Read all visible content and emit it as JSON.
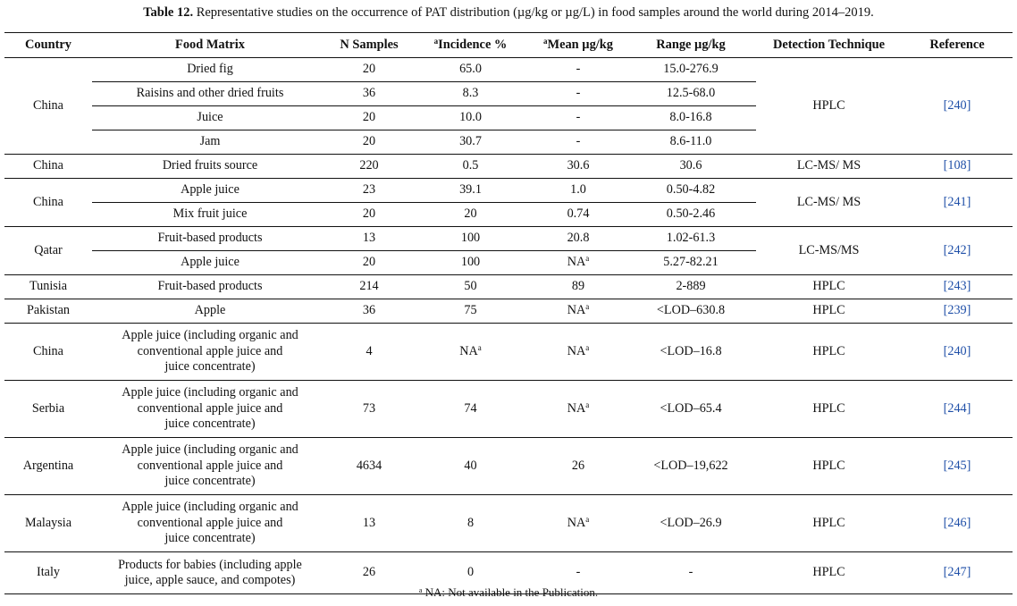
{
  "caption": {
    "label": "Table 12.",
    "text": "Representative studies on the occurrence of PAT distribution (µg/kg or µg/L) in food samples around the world during 2014–2019."
  },
  "table": {
    "headers": {
      "country": "Country",
      "food_matrix": "Food Matrix",
      "n_samples": "N Samples",
      "incidence_mark": "a",
      "incidence": "Incidence %",
      "mean_mark": "a",
      "mean": "Mean µg/kg",
      "range": "Range µg/kg",
      "technique": "Detection Technique",
      "reference": "Reference"
    },
    "groups": [
      {
        "country": "China",
        "technique": "HPLC",
        "reference": "[240]",
        "rows": [
          {
            "matrix": "Dried fig",
            "n": "20",
            "incidence": "65.0",
            "mean": "-",
            "range": "15.0-276.9"
          },
          {
            "matrix": "Raisins and other dried fruits",
            "n": "36",
            "incidence": "8.3",
            "mean": "-",
            "range": "12.5-68.0"
          },
          {
            "matrix": "Juice",
            "n": "20",
            "incidence": "10.0",
            "mean": "-",
            "range": "8.0-16.8"
          },
          {
            "matrix": "Jam",
            "n": "20",
            "incidence": "30.7",
            "mean": "-",
            "range": "8.6-11.0"
          }
        ]
      },
      {
        "country": "China",
        "technique": "LC-MS/ MS",
        "reference": "[108]",
        "rows": [
          {
            "matrix": "Dried fruits source",
            "n": "220",
            "incidence": "0.5",
            "mean": "30.6",
            "range": "30.6"
          }
        ]
      },
      {
        "country": "China",
        "technique": "LC-MS/ MS",
        "reference": "[241]",
        "rows": [
          {
            "matrix": "Apple juice",
            "n": "23",
            "incidence": "39.1",
            "mean": "1.0",
            "range": "0.50-4.82"
          },
          {
            "matrix": "Mix fruit juice",
            "n": "20",
            "incidence": "20",
            "mean": "0.74",
            "range": "0.50-2.46"
          }
        ]
      },
      {
        "country": "Qatar",
        "technique": "LC-MS/MS",
        "reference": "[242]",
        "rows": [
          {
            "matrix": "Fruit-based products",
            "n": "13",
            "incidence": "100",
            "mean": "20.8",
            "range": "1.02-61.3"
          },
          {
            "matrix": "Apple juice",
            "n": "20",
            "incidence": "100",
            "mean": "NA",
            "mean_sup": "a",
            "range": "5.27-82.21"
          }
        ]
      },
      {
        "country": "Tunisia",
        "technique": "HPLC",
        "reference": "[243]",
        "rows": [
          {
            "matrix": "Fruit-based products",
            "n": "214",
            "incidence": "50",
            "mean": "89",
            "range": "2-889"
          }
        ]
      },
      {
        "country": "Pakistan",
        "technique": "HPLC",
        "reference": "[239]",
        "rows": [
          {
            "matrix": "Apple",
            "n": "36",
            "incidence": "75",
            "mean": "NA",
            "mean_sup": "a",
            "range": "<LOD–630.8"
          }
        ]
      },
      {
        "country": "China",
        "technique": "HPLC",
        "reference": "[240]",
        "rows": [
          {
            "matrix_lines": [
              "Apple juice (including organic and",
              "conventional apple juice and",
              "juice concentrate)"
            ],
            "n": "4",
            "incidence": "NA",
            "incidence_sup": "a",
            "mean": "NA",
            "mean_sup": "a",
            "range": "<LOD–16.8"
          }
        ]
      },
      {
        "country": "Serbia",
        "technique": "HPLC",
        "reference": "[244]",
        "rows": [
          {
            "matrix_lines": [
              "Apple juice (including organic and",
              "conventional apple juice and",
              "juice concentrate)"
            ],
            "n": "73",
            "incidence": "74",
            "mean": "NA",
            "mean_sup": "a",
            "range": "<LOD–65.4"
          }
        ]
      },
      {
        "country": "Argentina",
        "technique": "HPLC",
        "reference": "[245]",
        "rows": [
          {
            "matrix_lines": [
              "Apple juice (including organic and",
              "conventional apple juice and",
              "juice concentrate)"
            ],
            "n": "4634",
            "incidence": "40",
            "mean": "26",
            "range": "<LOD–19,622"
          }
        ]
      },
      {
        "country": "Malaysia",
        "technique": "HPLC",
        "reference": "[246]",
        "rows": [
          {
            "matrix_lines": [
              "Apple juice (including organic and",
              "conventional apple juice and",
              "juice concentrate)"
            ],
            "n": "13",
            "incidence": "8",
            "mean": "NA",
            "mean_sup": "a",
            "range": "<LOD–26.9"
          }
        ]
      },
      {
        "country": "Italy",
        "technique": "HPLC",
        "reference": "[247]",
        "rows": [
          {
            "matrix_lines": [
              "Products for babies (including apple",
              "juice, apple sauce, and compotes)"
            ],
            "n": "26",
            "incidence": "0",
            "mean": "-",
            "range": "-"
          }
        ]
      }
    ]
  },
  "footnote": {
    "mark": "a",
    "text": "NA: Not available in the Publication."
  },
  "colors": {
    "text": "#111111",
    "reference_link": "#1f4fa8",
    "rule": "#111111"
  }
}
